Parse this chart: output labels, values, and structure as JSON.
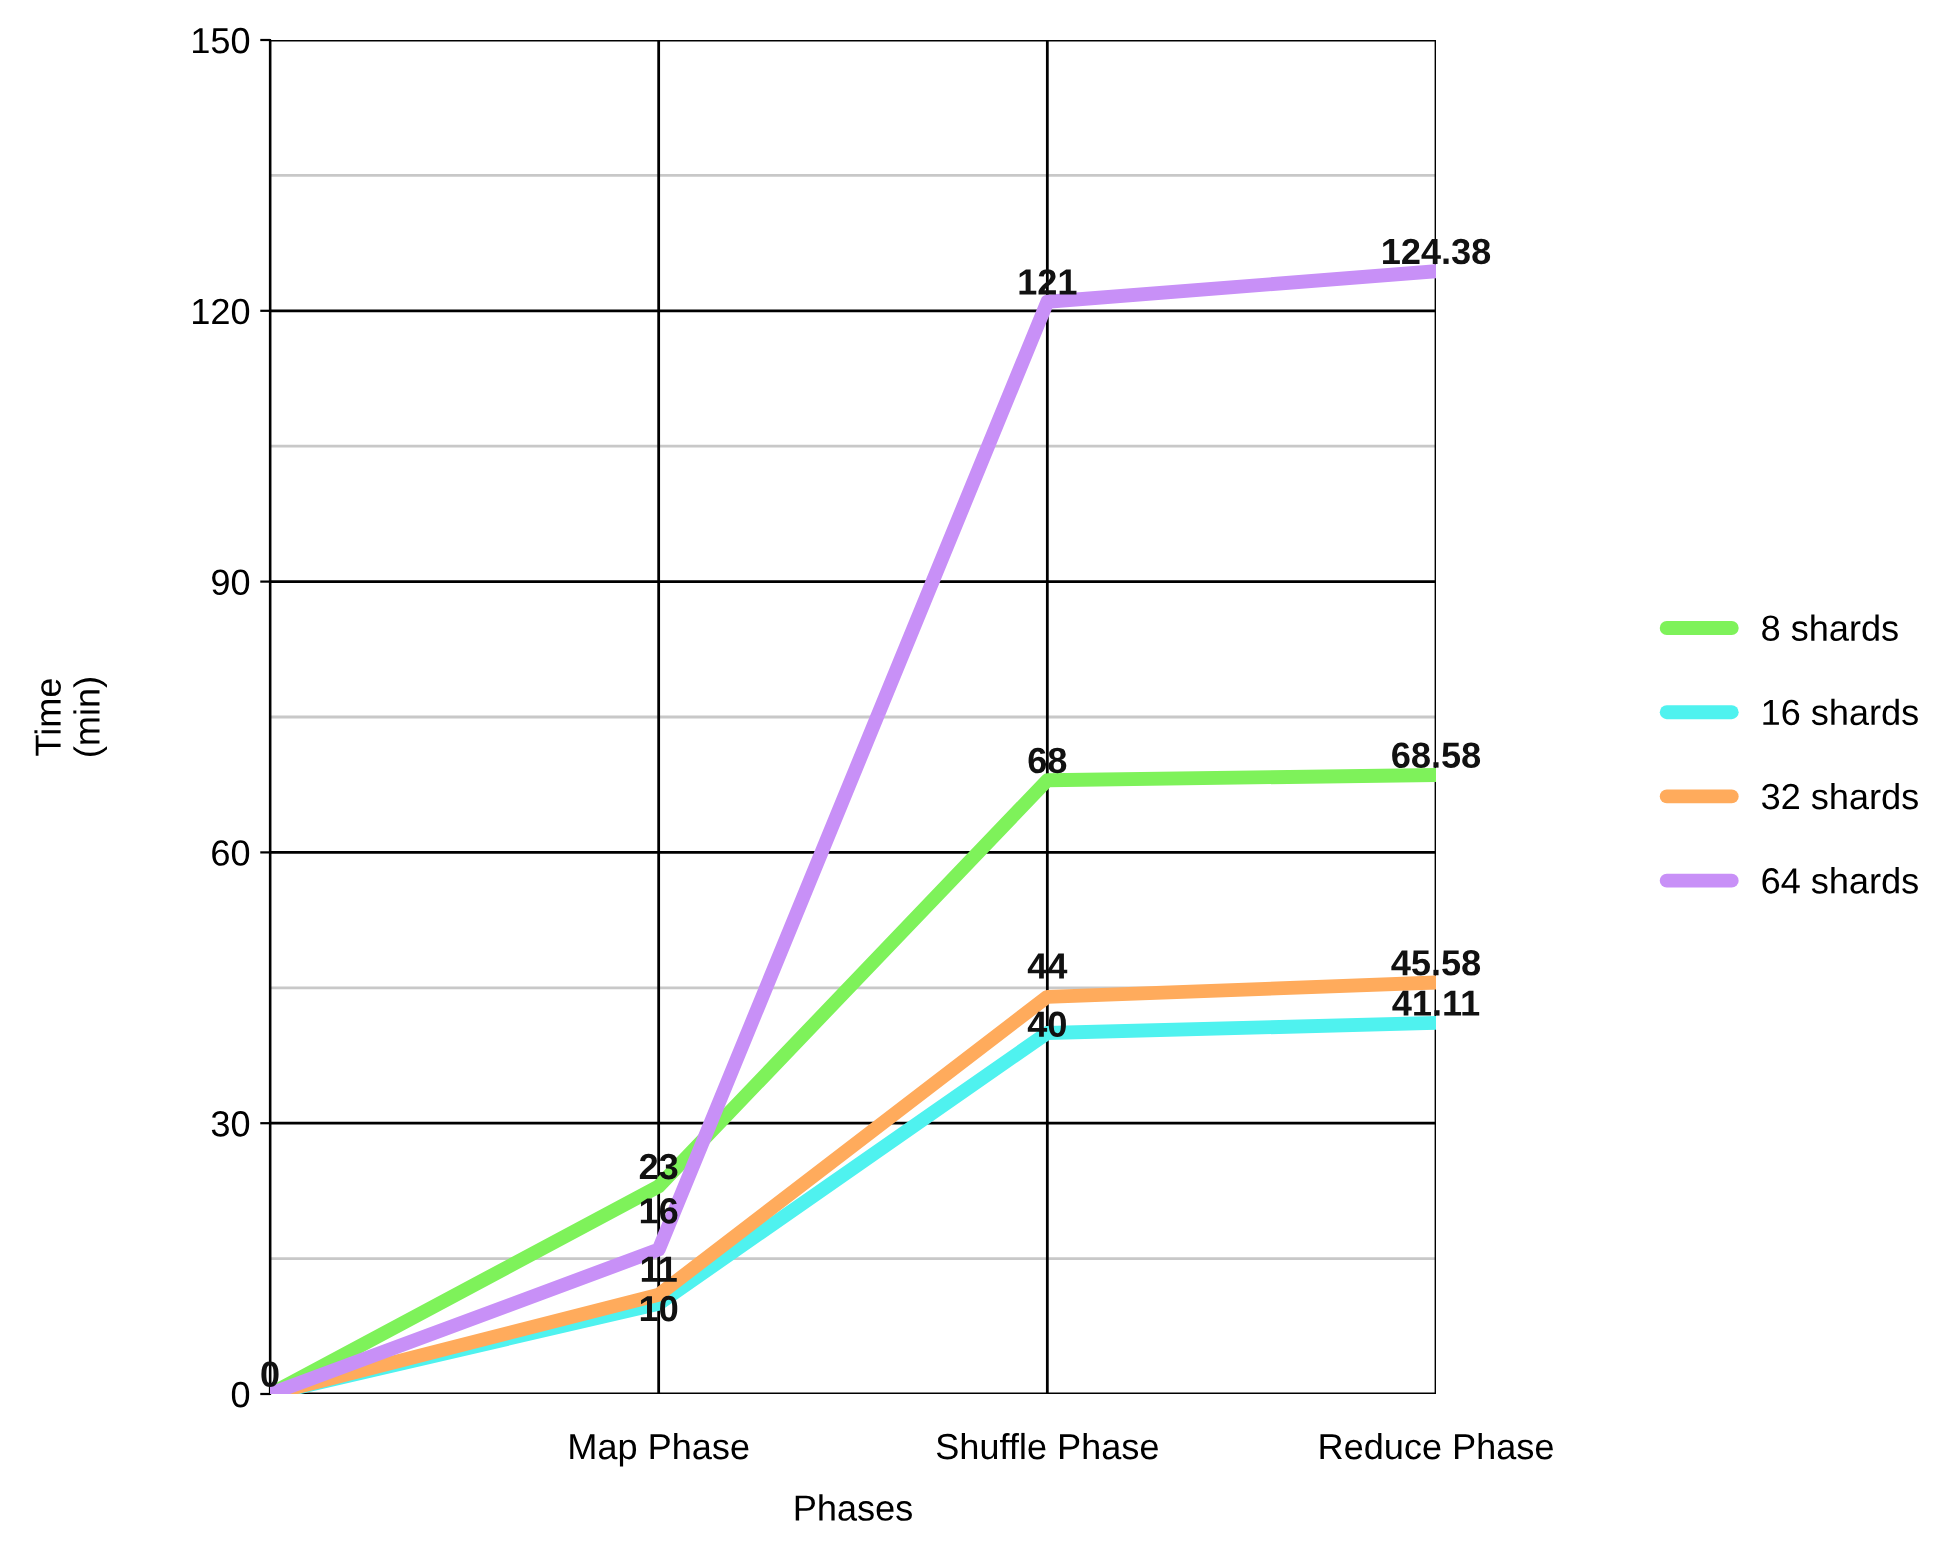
{
  "chart_data": {
    "type": "line",
    "xlabel": "Phases",
    "ylabel": "Time\n(min)",
    "categories": [
      null,
      "Map Phase",
      "Shuffle Phase",
      "Reduce Phase"
    ],
    "series": [
      {
        "name": "8 shards",
        "color": "#7ef25a",
        "values": [
          0,
          23,
          68,
          68.58
        ],
        "value_labels": [
          "0",
          "23",
          "68",
          "68.58"
        ]
      },
      {
        "name": "16 shards",
        "color": "#4ff2ef",
        "values": [
          0,
          10,
          40,
          41.11
        ],
        "value_labels": [
          null,
          "10",
          "40",
          "41.11"
        ]
      },
      {
        "name": "32 shards",
        "color": "#ffab5c",
        "values": [
          0,
          11,
          44,
          45.58
        ],
        "value_labels": [
          null,
          "11",
          "44",
          "45.58"
        ]
      },
      {
        "name": "64 shards",
        "color": "#c890f7",
        "values": [
          0,
          16,
          121,
          124.38
        ],
        "value_labels": [
          null,
          "16",
          "121",
          "124.38"
        ]
      }
    ],
    "ylim": [
      0,
      150
    ],
    "yticks": [
      0,
      {
        "value": 15,
        "label": null
      },
      30,
      {
        "value": 45,
        "label": null
      },
      60,
      {
        "value": 75,
        "label": null
      },
      90,
      {
        "value": 105,
        "label": null
      },
      120,
      {
        "value": 135,
        "label": null
      },
      150
    ],
    "grid": true,
    "legend": "right",
    "marker": "none",
    "line_style": "solid"
  }
}
